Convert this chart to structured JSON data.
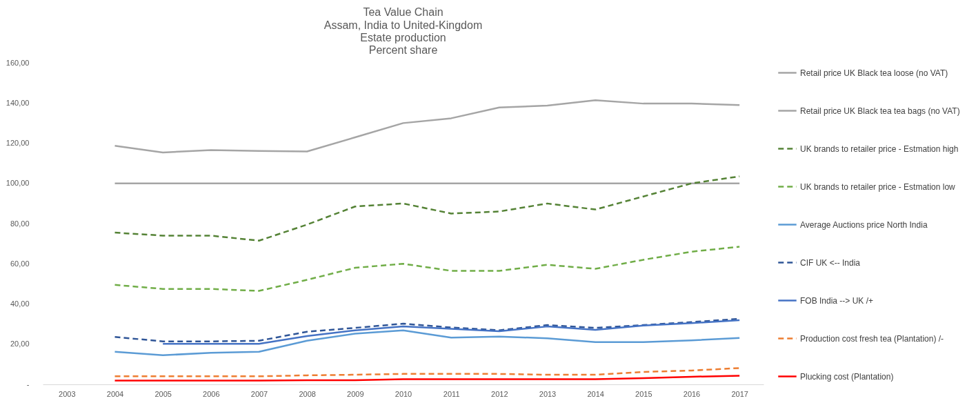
{
  "chart_data": {
    "type": "line",
    "title": "Tea Value Chain",
    "subtitle": "Assam, India to United-Kingdom\nEstate production\nPercent share",
    "categories": [
      "2003",
      "2004",
      "2005",
      "2006",
      "2007",
      "2008",
      "2009",
      "2010",
      "2011",
      "2012",
      "2013",
      "2014",
      "2015",
      "2016",
      "2017"
    ],
    "ylim": [
      0,
      160
    ],
    "yticks": [
      {
        "value": 0,
        "label": "-"
      },
      {
        "value": 20,
        "label": "20,00"
      },
      {
        "value": 40,
        "label": "40,00"
      },
      {
        "value": 60,
        "label": "60,00"
      },
      {
        "value": 80,
        "label": "80,00"
      },
      {
        "value": 100,
        "label": "100,00"
      },
      {
        "value": 120,
        "label": "120,00"
      },
      {
        "value": 140,
        "label": "140,00"
      },
      {
        "value": 160,
        "label": "160,00"
      }
    ],
    "grid": false,
    "legend": "right",
    "series": [
      {
        "name": "Retail price UK Black tea loose (no VAT)",
        "color": "#a5a5a5",
        "line_style": "solid",
        "values": [
          null,
          118.7,
          115.4,
          116.6,
          116.1,
          115.9,
          122.9,
          130.0,
          132.4,
          137.8,
          138.7,
          141.4,
          139.7,
          139.7,
          139.0
        ]
      },
      {
        "name": "Retail price UK Black tea tea bags (no VAT)",
        "color": "#a5a5a5",
        "line_style": "solid",
        "values": [
          null,
          100,
          100,
          100,
          100,
          100,
          100,
          100,
          100,
          100,
          100,
          100,
          100,
          100,
          100
        ]
      },
      {
        "name": " UK brands to retailer price - Estmation high",
        "color": "#548235",
        "line_style": "dashed",
        "values": [
          null,
          75.5,
          74,
          74,
          71.5,
          79.5,
          88.5,
          90,
          85,
          86,
          90,
          87,
          93.5,
          100,
          103.5
        ]
      },
      {
        "name": " UK brands to retailer price - Estmation low",
        "color": "#70ad47",
        "line_style": "dashed",
        "values": [
          null,
          49.5,
          47.5,
          47.5,
          46.5,
          52,
          58,
          60,
          56.5,
          56.5,
          59.5,
          57.5,
          62,
          66,
          68.5
        ]
      },
      {
        "name": "Average Auctions price North India",
        "color": "#5b9bd5",
        "line_style": "solid",
        "values": [
          null,
          16.2,
          14.5,
          15.7,
          16.2,
          21.7,
          25.2,
          26.9,
          23.3,
          23.8,
          22.9,
          21,
          21,
          21.9,
          23.1
        ]
      },
      {
        "name": "CIF UK <-- India",
        "color": "#2f5597",
        "line_style": "dashed",
        "values": [
          null,
          23.6,
          21.4,
          21.4,
          21.7,
          26.2,
          28.1,
          30.2,
          28.3,
          26.9,
          29.5,
          28.1,
          29.5,
          31,
          32.6
        ]
      },
      {
        "name": "FOB India --> UK /+",
        "color": "#4472c4",
        "line_style": "solid",
        "values": [
          null,
          null,
          20.2,
          20.2,
          20.2,
          24,
          26.9,
          28.8,
          27.6,
          26.4,
          28.8,
          27.1,
          29.3,
          30.5,
          31.9
        ]
      },
      {
        "name": "Production cost fresh tea (Plantation) /-",
        "color": "#ed7d31",
        "line_style": "dashed",
        "values": [
          null,
          4,
          4,
          4,
          4,
          4.5,
          4.8,
          5.2,
          5.2,
          5.2,
          4.8,
          4.8,
          6.2,
          6.9,
          8.1
        ]
      },
      {
        "name": "Plucking cost (Plantation)",
        "color": "#ff0000",
        "line_style": "solid",
        "values": [
          null,
          1.9,
          1.9,
          1.9,
          1.9,
          2.1,
          2.1,
          2.6,
          2.6,
          2.6,
          2.6,
          2.6,
          3.1,
          3.8,
          4.3
        ]
      }
    ]
  }
}
